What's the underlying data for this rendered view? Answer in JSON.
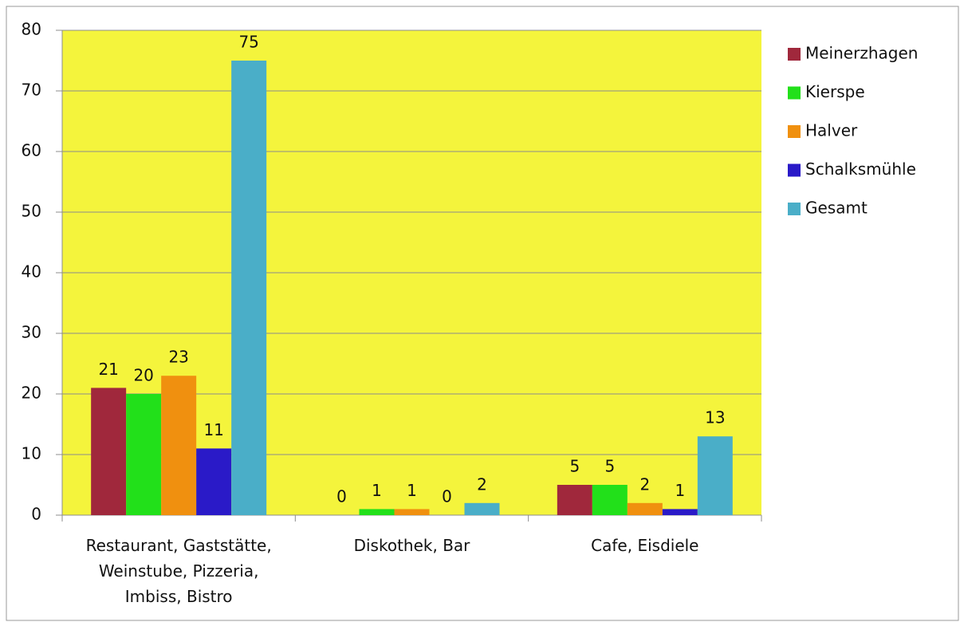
{
  "chart_data": {
    "type": "bar",
    "categories": [
      "Restaurant, Gaststätte, Weinstube, Pizzeria, Imbiss, Bistro",
      "Diskothek, Bar",
      "Cafe, Eisdiele"
    ],
    "series": [
      {
        "name": "Meinerzhagen",
        "color": "#a0283c",
        "values": [
          21,
          0,
          5
        ]
      },
      {
        "name": "Kierspe",
        "color": "#22e01a",
        "values": [
          20,
          1,
          5
        ]
      },
      {
        "name": "Halver",
        "color": "#f0900f",
        "values": [
          23,
          1,
          2
        ]
      },
      {
        "name": "Schalksmühle",
        "color": "#2a1ac8",
        "values": [
          11,
          0,
          1
        ]
      },
      {
        "name": "Gesamt",
        "color": "#4aaec8",
        "values": [
          75,
          2,
          13
        ]
      }
    ],
    "ylim": [
      0,
      80
    ],
    "yticks": [
      0,
      10,
      20,
      30,
      40,
      50,
      60,
      70,
      80
    ],
    "grid": true,
    "plot_background": "#f4f43c",
    "legend": "right"
  }
}
